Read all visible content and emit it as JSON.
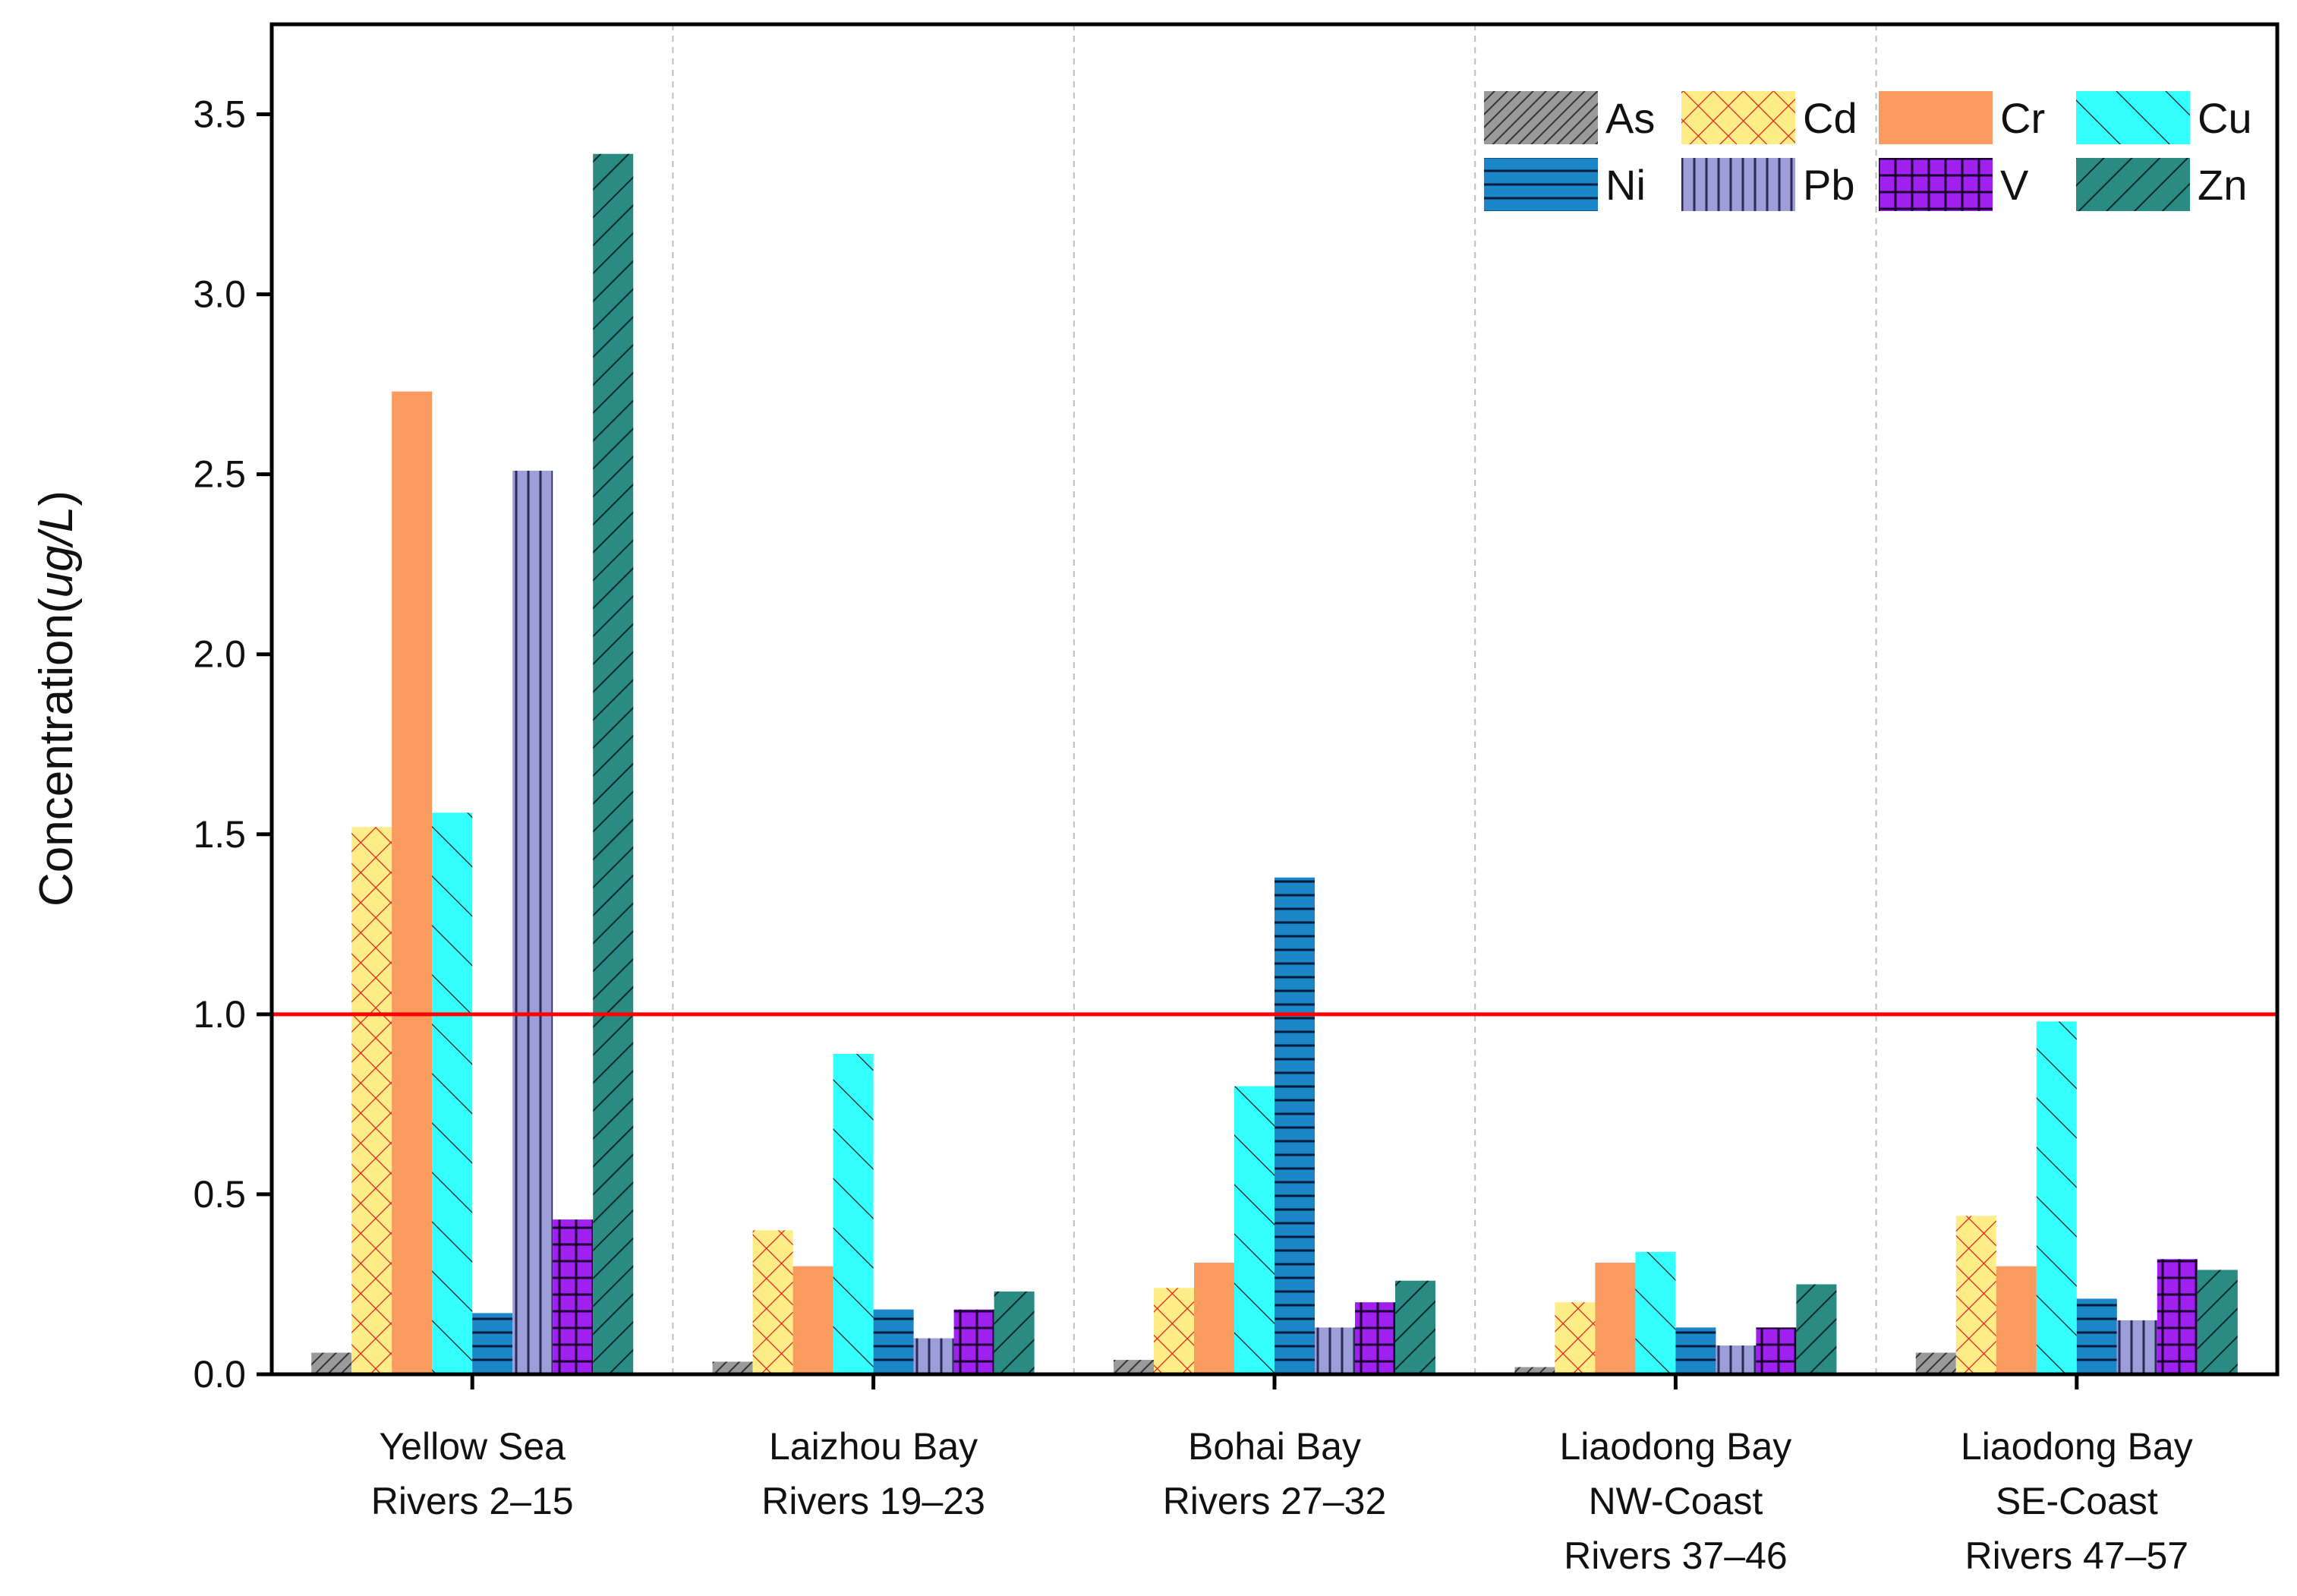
{
  "chart_data": {
    "type": "bar",
    "title": "",
    "xlabel": "",
    "ylabel": {
      "main": "Concentration",
      "unit": "ug/L"
    },
    "ylim": [
      0,
      3.75
    ],
    "yticks": [
      "0.0",
      "0.5",
      "1.0",
      "1.5",
      "2.0",
      "2.5",
      "3.0",
      "3.5"
    ],
    "threshold": {
      "value": 1.0,
      "color": "#ff0000"
    },
    "categories": [
      [
        "Yellow Sea",
        "Rivers 2–15"
      ],
      [
        "Laizhou Bay",
        "Rivers 19–23"
      ],
      [
        "Bohai Bay",
        "Rivers 27–32"
      ],
      [
        "Liaodong Bay",
        "NW-Coast",
        "Rivers 37–46"
      ],
      [
        "Liaodong Bay",
        "SE-Coast",
        "Rivers 47–57"
      ]
    ],
    "series": [
      {
        "name": "As",
        "color": "#9a9a9a",
        "pattern": "hatch-dense",
        "values": [
          0.06,
          0.035,
          0.04,
          0.02,
          0.06
        ]
      },
      {
        "name": "Cd",
        "color": "#ffee88",
        "pattern": "crosshatch-red",
        "values": [
          1.52,
          0.4,
          0.24,
          0.2,
          0.44
        ]
      },
      {
        "name": "Cr",
        "color": "#f99a5e",
        "pattern": "solid",
        "values": [
          2.73,
          0.3,
          0.31,
          0.31,
          0.3
        ]
      },
      {
        "name": "Cu",
        "color": "#33ffff",
        "pattern": "diagonal",
        "values": [
          1.56,
          0.89,
          0.8,
          0.34,
          0.98
        ]
      },
      {
        "name": "Ni",
        "color": "#1a86c8",
        "pattern": "horizontal",
        "values": [
          0.17,
          0.18,
          1.38,
          0.13,
          0.21
        ]
      },
      {
        "name": "Pb",
        "color": "#9d9ed8",
        "pattern": "vertical",
        "values": [
          2.51,
          0.1,
          0.13,
          0.08,
          0.15
        ]
      },
      {
        "name": "V",
        "color": "#a020f0",
        "pattern": "grid",
        "values": [
          0.43,
          0.18,
          0.2,
          0.13,
          0.32
        ]
      },
      {
        "name": "Zn",
        "color": "#2a8a84",
        "pattern": "backdiagonal",
        "values": [
          3.39,
          0.23,
          0.26,
          0.25,
          0.29
        ]
      }
    ],
    "legend_position": "top-right",
    "grid": false
  }
}
